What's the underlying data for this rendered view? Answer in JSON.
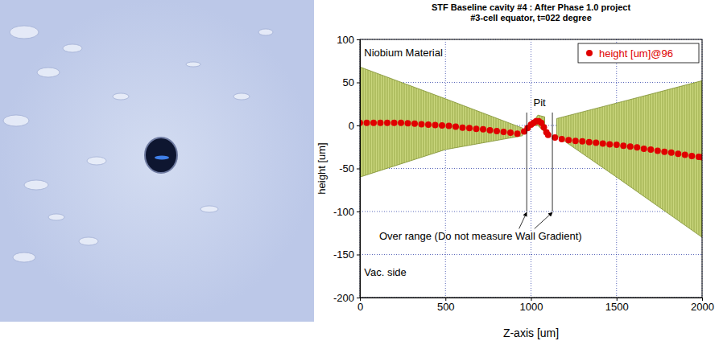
{
  "chart_data": {
    "type": "scatter",
    "title": "STF Baseline cavity #4 : After Phase 1.0 project",
    "subtitle": "#3-cell equator, t=022 degree",
    "x_label": "Z-axis [um]",
    "y_label": "height [um]",
    "xlim": [
      0,
      2000
    ],
    "ylim": [
      -200,
      100
    ],
    "xticks": [
      0,
      500,
      1000,
      1500,
      2000
    ],
    "yticks": [
      -200,
      -150,
      -100,
      -50,
      0,
      50,
      100
    ],
    "grid": true,
    "legend": "upper right",
    "series": [
      {
        "name": "height [um]@96",
        "color": "#e00000",
        "marker": "circle",
        "line_style": "none",
        "x": [
          0,
          40,
          80,
          120,
          160,
          200,
          240,
          280,
          320,
          360,
          400,
          440,
          480,
          520,
          560,
          600,
          640,
          680,
          720,
          760,
          800,
          840,
          880,
          920,
          960,
          980,
          1000,
          1015,
          1030,
          1045,
          1060,
          1075,
          1090,
          1100,
          1140,
          1180,
          1220,
          1260,
          1300,
          1340,
          1380,
          1420,
          1460,
          1500,
          1540,
          1580,
          1620,
          1660,
          1700,
          1740,
          1780,
          1820,
          1860,
          1900,
          1940,
          1980,
          2000
        ],
        "values": [
          3,
          3,
          3,
          3,
          3,
          3,
          3,
          2.5,
          2,
          1.5,
          1,
          0.5,
          0,
          -0.5,
          -1.5,
          -2.5,
          -3,
          -4,
          -4.5,
          -5.5,
          -6.5,
          -7.5,
          -8.5,
          -9.5,
          -7,
          -3,
          1,
          3,
          5,
          5,
          3,
          -2,
          -8,
          -11,
          -14,
          -16,
          -17,
          -18,
          -18.5,
          -19.5,
          -20,
          -21,
          -22,
          -22.5,
          -23.5,
          -24.5,
          -25.5,
          -27,
          -28,
          -29.5,
          -30.5,
          -31.5,
          -33,
          -34,
          -35.5,
          -36.5,
          -37
        ]
      }
    ],
    "band": {
      "color": "#c9d67c",
      "x": [
        0,
        500,
        950,
        970,
        1000,
        1040,
        1080,
        1110,
        1150,
        1500,
        2000
      ],
      "upper": [
        68,
        31,
        -3,
        null,
        0,
        12,
        10,
        null,
        8,
        26,
        52
      ],
      "lower": [
        -60,
        -28,
        -12,
        null,
        0,
        0,
        -8,
        null,
        -12,
        -60,
        -130
      ]
    },
    "annotations": [
      "Niobium Material",
      "Pit",
      "Over range (Do not measure Wall Gradient)",
      "Vac. side"
    ]
  }
}
